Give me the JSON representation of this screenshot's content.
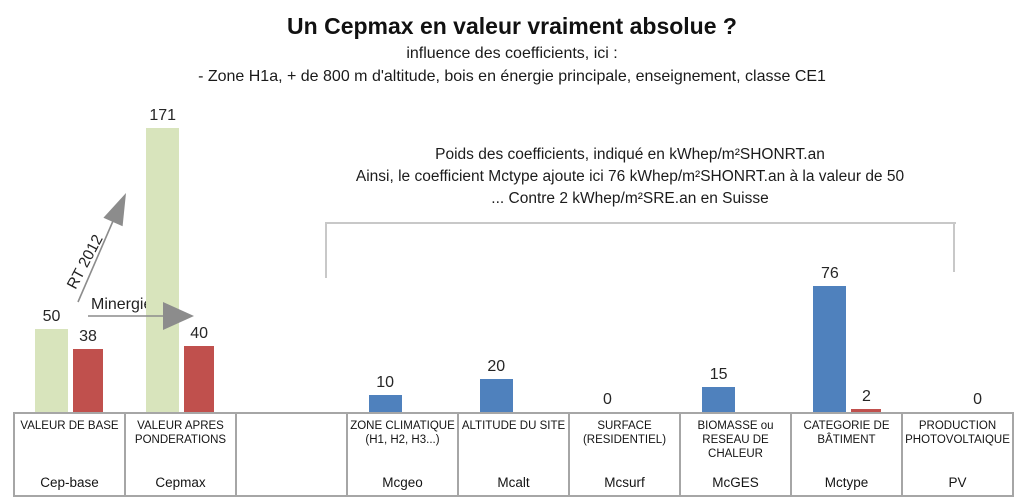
{
  "header": {
    "title": "Un Cepmax en valeur vraiment absolue ?",
    "subtitle": "influence des coefficients, ici :",
    "context": "- Zone H1a, + de 800 m d'altitude, bois en énergie principale, enseignement, classe CE1"
  },
  "annotation": {
    "line1": "Poids des coefficients, indiqué en kWhep/m²SHONRT.an",
    "line2": "Ainsi, le coefficient Mctype ajoute ici 76 kWhep/m²SHONRT.an à la valeur de 50",
    "line3": "... Contre 2 kWhep/m²SRE.an en Suisse"
  },
  "arrows": {
    "rt2012_label": "RT 2012",
    "minergie_label": "Minergie",
    "color": "#8c8c8c"
  },
  "colors": {
    "green": "#d8e4bc",
    "red": "#c0504d",
    "blue": "#4f81bd",
    "bracket": "#c8c8c8",
    "table_border": "#a6a6a6"
  },
  "chart_data": {
    "type": "bar",
    "title": "Un Cepmax en valeur vraiment absolue ?",
    "unit": "kWhep/m²SHONRT.an",
    "ylim": [
      0,
      180
    ],
    "grid": false,
    "legend": "none",
    "categories": [
      "Cep-base",
      "Cepmax",
      "",
      "Mcgeo",
      "Mcalt",
      "Mcsurf",
      "McGES",
      "Mctype",
      "PV"
    ],
    "category_descriptions": [
      "VALEUR DE BASE",
      "VALEUR APRES\nPONDERATIONS",
      "",
      "ZONE CLIMATIQUE\n(H1, H2, H3...)",
      "ALTITUDE DU SITE",
      "SURFACE\n(RESIDENTIEL)",
      "BIOMASSE ou\nRESEAU DE\nCHALEUR",
      "CATEGORIE DE\nBÂTIMENT",
      "PRODUCTION\nPHOTOVOLTAIQUE"
    ],
    "bars": [
      [
        {
          "slot": 0,
          "value": 50,
          "color": "green"
        },
        {
          "slot": 1,
          "value": 38,
          "color": "red"
        }
      ],
      [
        {
          "slot": 0,
          "value": 171,
          "color": "green"
        },
        {
          "slot": 1,
          "value": 40,
          "color": "red"
        }
      ],
      [],
      [
        {
          "slot": 0,
          "value": 10,
          "color": "blue"
        }
      ],
      [
        {
          "slot": 0,
          "value": 20,
          "color": "blue"
        }
      ],
      [
        {
          "slot": 0,
          "value": 0,
          "color": "blue"
        }
      ],
      [
        {
          "slot": 0,
          "value": 15,
          "color": "blue"
        }
      ],
      [
        {
          "slot": 0,
          "value": 76,
          "color": "blue"
        },
        {
          "slot": 1,
          "value": 2,
          "color": "red"
        }
      ],
      [
        {
          "slot": 1,
          "value": 0,
          "color": "red"
        }
      ]
    ]
  }
}
